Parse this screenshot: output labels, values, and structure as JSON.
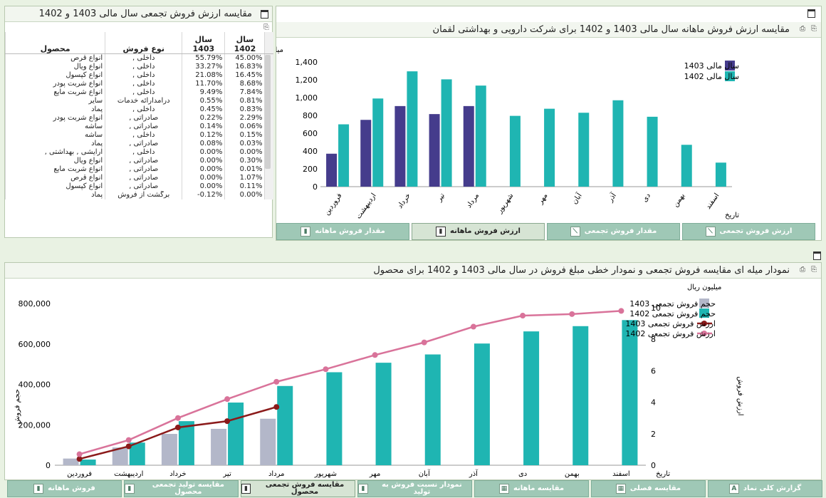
{
  "left_panel": {
    "title": "مقایسه ارزش فروش تجمعی سال مالی 1403 و 1402",
    "columns": {
      "product": "محصول",
      "type": "نوع فروش",
      "y1403": "سال 1403",
      "y1402": "سال 1402"
    },
    "rows": [
      {
        "product": "انواع قرص",
        "type": "داخلی ,",
        "v1403": "55.79%",
        "v1402": "45.00%"
      },
      {
        "product": "انواع ویال",
        "type": "داخلی ,",
        "v1403": "33.27%",
        "v1402": "16.83%"
      },
      {
        "product": "انواع کپسول",
        "type": "داخلی ,",
        "v1403": "21.08%",
        "v1402": "16.45%"
      },
      {
        "product": "انواع شربت پودر",
        "type": "داخلی ,",
        "v1403": "11.70%",
        "v1402": "8.68%"
      },
      {
        "product": "انواع شربت مایع",
        "type": "داخلی ,",
        "v1403": "9.49%",
        "v1402": "7.84%"
      },
      {
        "product": "سایر",
        "type": "درآمدارائه خدمات",
        "v1403": "0.55%",
        "v1402": "0.81%"
      },
      {
        "product": "پماد",
        "type": "داخلی ,",
        "v1403": "0.45%",
        "v1402": "0.83%"
      },
      {
        "product": "انواع شربت پودر",
        "type": "صادراتی ,",
        "v1403": "0.22%",
        "v1402": "2.29%"
      },
      {
        "product": "ساشه",
        "type": "صادراتی ,",
        "v1403": "0.14%",
        "v1402": "0.06%"
      },
      {
        "product": "ساشه",
        "type": "داخلی ,",
        "v1403": "0.12%",
        "v1402": "0.15%"
      },
      {
        "product": "پماد",
        "type": "صادراتی ,",
        "v1403": "0.08%",
        "v1402": "0.03%"
      },
      {
        "product": "آرایشی , بهداشتی ,",
        "type": "داخلی ,",
        "v1403": "0.00%",
        "v1402": "0.00%"
      },
      {
        "product": "انواع ویال",
        "type": "صادراتی ,",
        "v1403": "0.00%",
        "v1402": "0.30%"
      },
      {
        "product": "انواع شربت مایع",
        "type": "صادراتی ,",
        "v1403": "0.00%",
        "v1402": "0.01%"
      },
      {
        "product": "انواع قرص",
        "type": "صادراتی ,",
        "v1403": "0.00%",
        "v1402": "1.07%"
      },
      {
        "product": "انواع کپسول",
        "type": "صادراتی ,",
        "v1403": "0.00%",
        "v1402": "0.11%"
      },
      {
        "product": "پماد",
        "type": "برگشت از فروش",
        "v1403": "-0.12%",
        "v1402": "0.00%"
      }
    ]
  },
  "top_chart": {
    "title": "مقایسه ارزش فروش ماهانه سال مالی 1403 و 1402 برای شرکت دارویی و بهداشتی لقمان",
    "chart_data": {
      "type": "bar",
      "ylabel": "میلیارد ریال",
      "xlabel": "تاریخ",
      "ylim": [
        0,
        1400
      ],
      "yticks": [
        "0",
        "200",
        "400",
        "600",
        "800",
        "1,000",
        "1,200",
        "1,400"
      ],
      "categories": [
        "فروردین",
        "اردیبهشت",
        "خرداد",
        "تیر",
        "مرداد",
        "شهریور",
        "مهر",
        "آبان",
        "آذر",
        "دی",
        "بهمن",
        "اسفند"
      ],
      "series": [
        {
          "name": "سال مالی 1403",
          "color": "#453c8c",
          "values": [
            370,
            750,
            905,
            815,
            905,
            null,
            null,
            null,
            null,
            null,
            null,
            null
          ]
        },
        {
          "name": "سال مالی 1402",
          "color": "#1fb5b2",
          "values": [
            700,
            990,
            1295,
            1205,
            1135,
            795,
            875,
            830,
            970,
            785,
            470,
            270
          ]
        }
      ],
      "legend_position": "top-right"
    },
    "tabs": [
      {
        "label": "ارزش فروش تجمعی",
        "icon": "line-chart-icon",
        "active": false
      },
      {
        "label": "مقدار فروش تجمعی",
        "icon": "line-chart-icon",
        "active": false
      },
      {
        "label": "ارزش فروش ماهانه",
        "icon": "bar-chart-icon",
        "active": true
      },
      {
        "label": "مقدار فروش ماهانه",
        "icon": "bar-chart-icon",
        "active": false
      }
    ]
  },
  "bottom_chart": {
    "title": "نمودار میله ای مقایسه فروش تجمعی و نمودار خطی مبلغ فروش در سال مالی 1403 و 1402 برای محصول",
    "chart_data": {
      "type": "bar",
      "left_axis_label": "حجم فروش",
      "right_axis_label": "ارزش فروش",
      "right_axis_unit": "میلیون ریال",
      "xlabel": "تاریخ",
      "left_ylim": [
        0,
        800000
      ],
      "left_yticks": [
        "0",
        "200,000",
        "400,000",
        "600,000",
        "800,000"
      ],
      "right_ylim": [
        0,
        10
      ],
      "right_yticks": [
        "0",
        "2",
        "4",
        "6",
        "8",
        "10"
      ],
      "categories": [
        "فروردین",
        "اردیبهشت",
        "خرداد",
        "تیر",
        "مرداد",
        "شهریور",
        "مهر",
        "آبان",
        "آذر",
        "دی",
        "بهمن",
        "اسفند"
      ],
      "bar_series": [
        {
          "name": "حجم فروش تجمعی 1403",
          "color": "#b3b7c9",
          "values": [
            33000,
            88000,
            155000,
            180000,
            230000,
            null,
            null,
            null,
            null,
            null,
            null,
            null
          ]
        },
        {
          "name": "حجم فروش تجمعی 1402",
          "color": "#1fb5b2",
          "values": [
            28000,
            112000,
            218000,
            310000,
            392000,
            460000,
            507000,
            548000,
            602000,
            662000,
            688000,
            718000
          ]
        }
      ],
      "line_series": [
        {
          "name": "ارزش فروش تجمعی 1403",
          "color": "#8b1a1a",
          "values": [
            0.4,
            1.2,
            2.4,
            2.8,
            3.7,
            null,
            null,
            null,
            null,
            null,
            null,
            null
          ]
        },
        {
          "name": "ارزش فروش تجمعی 1402",
          "color": "#d9739a",
          "values": [
            0.7,
            1.6,
            3.0,
            4.2,
            5.3,
            6.1,
            7.0,
            7.8,
            8.8,
            9.5,
            9.6,
            9.8
          ]
        }
      ],
      "legend_position": "top-right"
    },
    "tabs": [
      {
        "label": "گزارش کلی نماد",
        "icon": "report-icon",
        "active": false
      },
      {
        "label": "مقایسه فصلی",
        "icon": "table-icon",
        "active": false
      },
      {
        "label": "مقایسه ماهانه",
        "icon": "table-icon",
        "active": false
      },
      {
        "label": "نمودار نسبت فروش به تولید",
        "icon": "bar-chart-icon",
        "active": false
      },
      {
        "label": "مقایسه فروش تجمعی محصول",
        "icon": "bar-chart-icon",
        "active": true
      },
      {
        "label": "مقایسه تولید تجمعی محصول",
        "icon": "bar-chart-icon",
        "active": false
      },
      {
        "label": "فروش ماهانه",
        "icon": "bar-chart-icon",
        "active": false
      }
    ]
  }
}
